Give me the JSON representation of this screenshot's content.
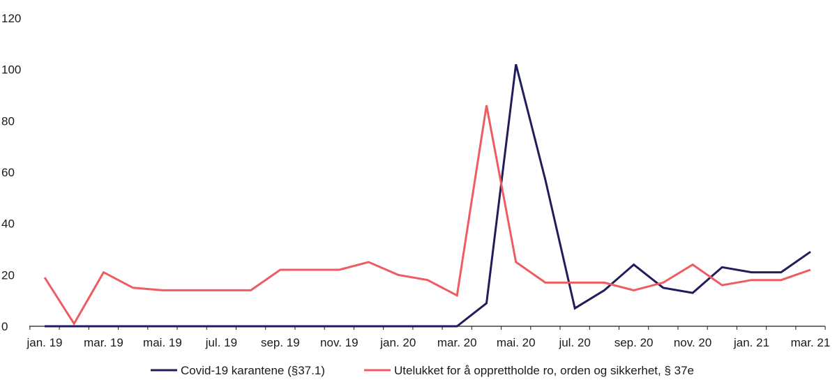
{
  "chart_data": {
    "type": "line",
    "title": "",
    "xlabel": "",
    "ylabel": "",
    "ylim": [
      0,
      120
    ],
    "yticks": [
      0,
      20,
      40,
      60,
      80,
      100,
      120
    ],
    "grid": false,
    "legend_position": "bottom",
    "x": [
      "jan. 19",
      "feb. 19",
      "mar. 19",
      "apr. 19",
      "mai. 19",
      "jun. 19",
      "jul. 19",
      "aug. 19",
      "sep. 19",
      "okt. 19",
      "nov. 19",
      "des. 19",
      "jan. 20",
      "feb. 20",
      "mar. 20",
      "apr. 20",
      "mai. 20",
      "jun. 20",
      "jul. 20",
      "aug. 20",
      "sep. 20",
      "okt. 20",
      "nov. 20",
      "des. 20",
      "jan. 21",
      "feb. 21",
      "mar. 21"
    ],
    "xtick_labels": [
      "jan. 19",
      "mar. 19",
      "mai. 19",
      "jul. 19",
      "sep. 19",
      "nov. 19",
      "jan. 20",
      "mar. 20",
      "mai. 20",
      "jul. 20",
      "sep. 20",
      "nov. 20",
      "jan. 21",
      "mar. 21"
    ],
    "series": [
      {
        "name": "Covid-19 karantene (§37.1)",
        "color": "#1f1d5c",
        "values": [
          0,
          0,
          0,
          0,
          0,
          0,
          0,
          0,
          0,
          0,
          0,
          0,
          0,
          0,
          0,
          9,
          102,
          57,
          7,
          14,
          24,
          15,
          13,
          23,
          21,
          21,
          29
        ]
      },
      {
        "name": "Utelukket for å opprettholde ro, orden og sikkerhet, § 37e",
        "color": "#ee5c61",
        "values": [
          19,
          1,
          21,
          15,
          14,
          14,
          14,
          14,
          22,
          22,
          22,
          25,
          20,
          18,
          12,
          86,
          25,
          17,
          17,
          17,
          14,
          17,
          24,
          16,
          18,
          18,
          22
        ]
      }
    ]
  }
}
